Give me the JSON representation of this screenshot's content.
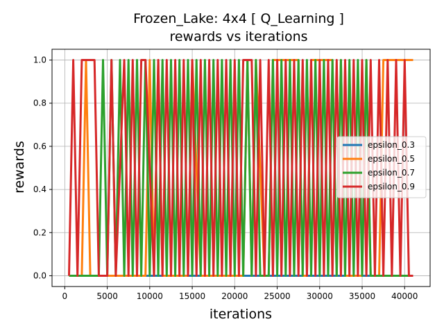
{
  "chart_data": {
    "type": "line",
    "title_line1": "Frozen_Lake: 4x4 [ Q_Learning ]",
    "title_line2": "rewards vs iterations",
    "xlabel": "iterations",
    "ylabel": "rewards",
    "xlim": [
      -1500,
      43000
    ],
    "ylim": [
      -0.05,
      1.05
    ],
    "xticks": [
      0,
      5000,
      10000,
      15000,
      20000,
      25000,
      30000,
      35000,
      40000
    ],
    "xtick_labels": [
      "0",
      "5000",
      "10000",
      "15000",
      "20000",
      "25000",
      "30000",
      "35000",
      "40000"
    ],
    "yticks": [
      0.0,
      0.2,
      0.4,
      0.6,
      0.8,
      1.0
    ],
    "ytick_labels": [
      "0.0",
      "0.2",
      "0.4",
      "0.6",
      "0.8",
      "1.0"
    ],
    "grid": true,
    "legend_position": "center-right",
    "series": [
      {
        "name": "epsilon_0.3",
        "color": "#1f77b4",
        "x": [
          500,
          7000,
          15000,
          22000,
          30000,
          36000,
          41000
        ],
        "y": [
          0,
          0,
          0,
          0,
          0,
          0,
          0
        ]
      },
      {
        "name": "epsilon_0.5",
        "color": "#ff7f0e",
        "x": [
          500,
          2000,
          2500,
          3000,
          9500,
          10000,
          10500,
          11000,
          11500,
          14500,
          15000,
          16000,
          17000,
          21000,
          21500,
          22000,
          22500,
          23500,
          24000,
          24500,
          27500,
          28000,
          28500,
          29000,
          31500,
          32000,
          32500,
          33000,
          35000,
          35500,
          36000,
          37000,
          37500,
          38000,
          38500,
          39000,
          41000
        ],
        "y": [
          0,
          0,
          1,
          0,
          0,
          1,
          0,
          1,
          0,
          0,
          1,
          0,
          0,
          0,
          1,
          0,
          1,
          0,
          0,
          1,
          1,
          0,
          0,
          1,
          1,
          0,
          1,
          0,
          0,
          1,
          0,
          0,
          1,
          1,
          1,
          1,
          1
        ]
      },
      {
        "name": "epsilon_0.7",
        "color": "#2ca02c",
        "x": [
          500,
          4000,
          4500,
          5000,
          5500,
          6000,
          6500,
          7000,
          7500,
          8000,
          8500,
          9000,
          9500,
          10000,
          10500,
          11000,
          11500,
          12000,
          12500,
          13000,
          13500,
          14000,
          14500,
          15000,
          15500,
          16000,
          16500,
          17000,
          17500,
          18000,
          18500,
          19000,
          19500,
          20000,
          20500,
          21000,
          21500,
          22000,
          22500,
          23000,
          24000,
          24500,
          25000,
          25500,
          26000,
          26500,
          27000,
          27500,
          28000,
          28500,
          29000,
          29500,
          30000,
          30500,
          31000,
          31500,
          32000,
          32500,
          33000,
          33500,
          34000,
          34500,
          35000,
          35500,
          36000,
          41000
        ],
        "y": [
          0,
          0,
          1,
          0,
          1,
          0,
          1,
          0,
          1,
          0,
          1,
          0,
          1,
          0,
          1,
          0,
          1,
          0,
          1,
          0,
          1,
          0,
          1,
          0,
          1,
          0,
          1,
          0,
          1,
          0,
          1,
          0,
          1,
          0,
          1,
          0,
          1,
          0,
          1,
          0,
          0,
          1,
          0,
          1,
          0,
          1,
          0,
          1,
          0,
          1,
          0,
          1,
          0,
          1,
          0,
          1,
          0,
          1,
          0,
          1,
          0,
          1,
          0,
          1,
          0,
          0
        ]
      },
      {
        "name": "epsilon_0.9",
        "color": "#d62728",
        "x": [
          500,
          1000,
          1500,
          2000,
          3500,
          4000,
          5000,
          5500,
          6000,
          7000,
          7500,
          8000,
          8500,
          9000,
          9500,
          10500,
          11000,
          11500,
          12000,
          12500,
          13000,
          13500,
          14000,
          14500,
          15000,
          15500,
          16000,
          16500,
          17000,
          17500,
          18000,
          18500,
          19000,
          19500,
          20000,
          20500,
          21000,
          21500,
          22000,
          22500,
          23000,
          23500,
          24000,
          24500,
          25000,
          25500,
          26000,
          26500,
          27000,
          27500,
          28000,
          28500,
          29000,
          29500,
          30000,
          30500,
          31000,
          31500,
          32000,
          32500,
          33000,
          33500,
          34000,
          34500,
          35000,
          35500,
          36000,
          36500,
          37000,
          37500,
          38000,
          38500,
          39000,
          39500,
          40000,
          40500,
          41000
        ],
        "y": [
          0,
          1,
          0,
          1,
          1,
          0,
          0,
          1,
          0,
          1,
          0,
          1,
          0,
          1,
          1,
          0,
          1,
          0,
          1,
          0,
          1,
          0,
          1,
          0,
          1,
          0,
          1,
          0,
          1,
          0,
          1,
          0,
          1,
          0,
          1,
          0,
          1,
          1,
          1,
          0,
          1,
          0,
          1,
          0,
          1,
          0,
          1,
          0,
          1,
          0,
          1,
          0,
          1,
          0,
          1,
          0,
          1,
          0,
          1,
          0,
          1,
          0,
          1,
          0,
          1,
          0,
          1,
          0,
          1,
          0,
          1,
          0,
          1,
          0,
          1,
          0,
          0
        ]
      }
    ]
  }
}
